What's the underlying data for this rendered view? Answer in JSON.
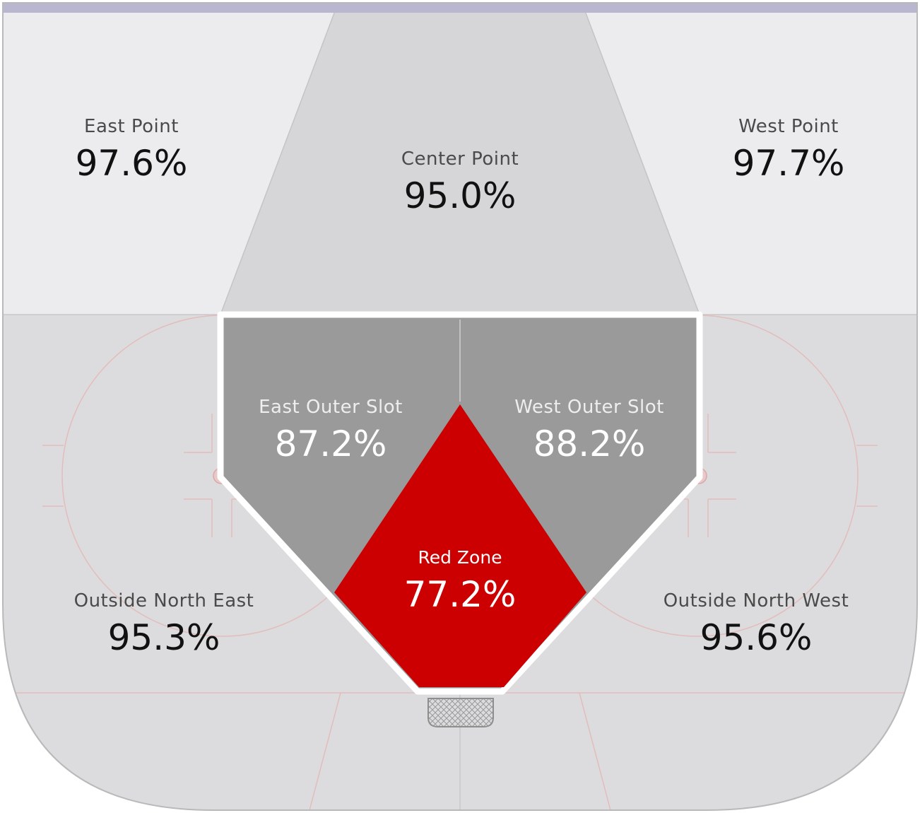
{
  "title": "",
  "zones": [
    {
      "id": "east-point",
      "name": "East Point",
      "value": "97.6%"
    },
    {
      "id": "center-point",
      "name": "Center Point",
      "value": "95.0%"
    },
    {
      "id": "west-point",
      "name": "West Point",
      "value": "97.7%"
    },
    {
      "id": "east-outer-slot",
      "name": "East Outer Slot",
      "value": "87.2%"
    },
    {
      "id": "west-outer-slot",
      "name": "West Outer Slot",
      "value": "88.2%"
    },
    {
      "id": "red-zone",
      "name": "Red Zone",
      "value": "77.2%"
    },
    {
      "id": "outside-north-east",
      "name": "Outside North East",
      "value": "95.3%"
    },
    {
      "id": "outside-north-west",
      "name": "Outside North West",
      "value": "95.6%"
    }
  ],
  "colors": {
    "red_zone": "#cc0000",
    "slot": "#9a9a9b",
    "center_point": "#d6d6d8",
    "side_point": "#ececee",
    "lower_ice": "#dcdcde",
    "top_stripe": "#b9b6d0",
    "rink_lines": "#e3bcbc"
  }
}
